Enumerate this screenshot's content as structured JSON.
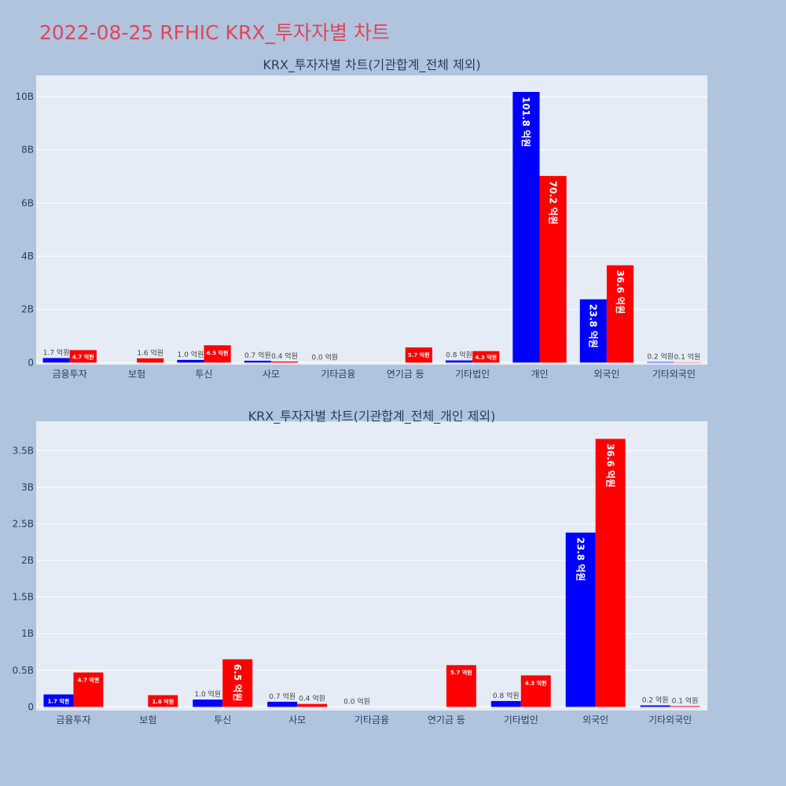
{
  "title": "2022-08-25 RFHIC KRX_투자자별 차트",
  "colors": {
    "series_a": "#0000ff",
    "series_b": "#ff0000",
    "plot_bg": "#e5ecf6",
    "page_bg": "#b0c4de",
    "title": "#e0455a"
  },
  "chart_data": [
    {
      "type": "bar",
      "title": "KRX_투자자별 차트(기관합계_전체 제외)",
      "categories": [
        "금융투자",
        "보험",
        "투신",
        "사모",
        "기타금융",
        "연기금 등",
        "기타법인",
        "개인",
        "외국인",
        "기타외국인"
      ],
      "series": [
        {
          "values": [
            170000000,
            0,
            100000000,
            70000000,
            0,
            0,
            80000000,
            10180000000,
            2380000000,
            20000000
          ],
          "labels": [
            "1.7 억원",
            "",
            "1.0 억원",
            "0.7 억원",
            "0.0 억원",
            "",
            "0.8 억원",
            "101.8 억원",
            "23.8 억원",
            "0.2 억원"
          ]
        },
        {
          "values": [
            470000000,
            160000000,
            650000000,
            40000000,
            0,
            570000000,
            430000000,
            7020000000,
            3660000000,
            10000000
          ],
          "labels": [
            "4.7 억원",
            "1.6 억원",
            "6.5 억원",
            "0.4 억원",
            "",
            "5.7 억원",
            "4.3 억원",
            "70.2 억원",
            "36.6 억원",
            "0.1 억원"
          ]
        }
      ],
      "ylim": [
        -80000000,
        10800000000
      ],
      "yticks": [
        0,
        2000000000,
        4000000000,
        6000000000,
        8000000000,
        10000000000
      ],
      "ytick_labels": [
        "0",
        "2B",
        "4B",
        "6B",
        "8B",
        "10B"
      ],
      "grid": true
    },
    {
      "type": "bar",
      "title": "KRX_투자자별 차트(기관합계_전체_개인 제외)",
      "categories": [
        "금융투자",
        "보험",
        "투신",
        "사모",
        "기타금융",
        "연기금 등",
        "기타법인",
        "외국인",
        "기타외국인"
      ],
      "series": [
        {
          "values": [
            170000000,
            0,
            100000000,
            70000000,
            0,
            0,
            80000000,
            2380000000,
            20000000
          ],
          "labels": [
            "1.7 억원",
            "",
            "1.0 억원",
            "0.7 억원",
            "0.0 억원",
            "",
            "0.8 억원",
            "23.8 억원",
            "0.2 억원"
          ]
        },
        {
          "values": [
            470000000,
            160000000,
            650000000,
            40000000,
            0,
            570000000,
            430000000,
            3660000000,
            10000000
          ],
          "labels": [
            "4.7 억원",
            "1.6 억원",
            "6.5 억원",
            "0.4 억원",
            "",
            "5.7 억원",
            "4.3 억원",
            "36.6 억원",
            "0.1 억원"
          ]
        }
      ],
      "ylim": [
        -50000000,
        3900000000
      ],
      "yticks": [
        0,
        500000000,
        1000000000,
        1500000000,
        2000000000,
        2500000000,
        3000000000,
        3500000000
      ],
      "ytick_labels": [
        "0",
        "0.5B",
        "1B",
        "1.5B",
        "2B",
        "2.5B",
        "3B",
        "3.5B"
      ],
      "grid": true
    }
  ]
}
